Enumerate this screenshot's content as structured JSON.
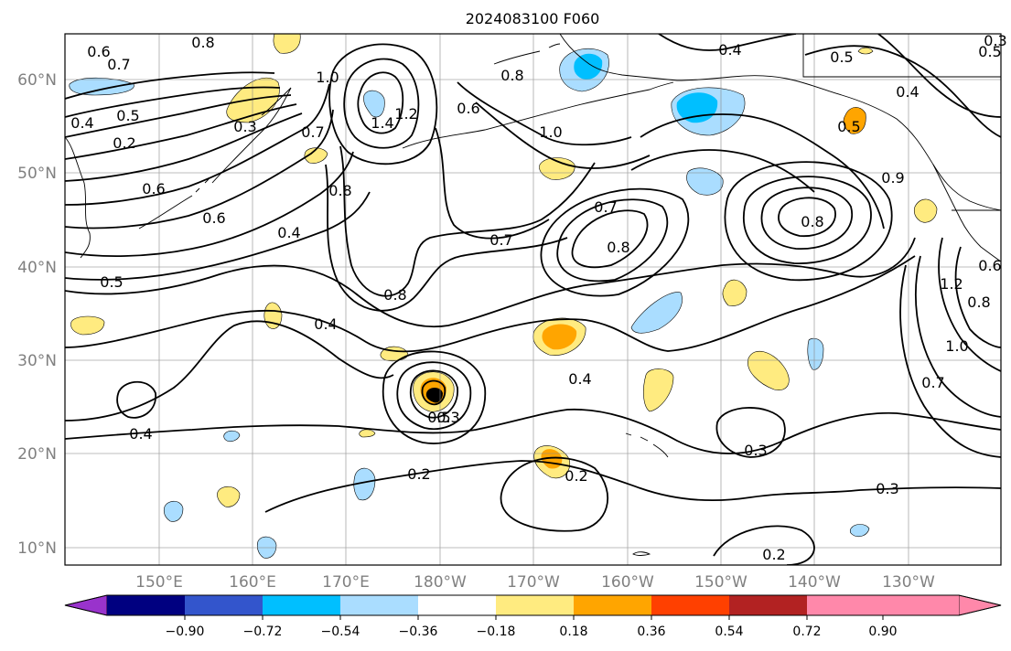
{
  "title": "2024083100 F060",
  "map": {
    "lat_labels": [
      "60°N",
      "50°N",
      "40°N",
      "30°N",
      "20°N",
      "10°N"
    ],
    "lon_labels": [
      "150°E",
      "160°E",
      "170°E",
      "180°W",
      "170°W",
      "160°W",
      "150°W",
      "140°W",
      "130°W"
    ],
    "contour_labels": [
      "0.8",
      "0.7",
      "0.6",
      "0.5",
      "0.4",
      "0.3",
      "0.2",
      "1.0",
      "1.4",
      "1.2",
      "0.6",
      "0.8",
      "1.0",
      "0.8",
      "0.7",
      "0.6",
      "0.6",
      "0.4",
      "0.5",
      "0.8",
      "0.7",
      "0.8",
      "0.7",
      "0.4",
      "0.5",
      "0.4",
      "0.4",
      "0.8",
      "0.4",
      "0.5",
      "0.5",
      "0.4",
      "0.3",
      "0.2",
      "0.3",
      "0.2",
      "0.2",
      "0.3",
      "0.7",
      "1.0",
      "1.2",
      "0.8",
      "0.6",
      "0.9",
      "0.5",
      "0.3"
    ]
  },
  "colorbar": {
    "ticks": [
      "−0.90",
      "−0.72",
      "−0.54",
      "−0.36",
      "−0.18",
      "0.18",
      "0.36",
      "0.54",
      "0.72",
      "0.90"
    ],
    "colors": [
      "#9933cc",
      "#000080",
      "#3355cc",
      "#00bfff",
      "#aaddff",
      "#ffffff",
      "#ffeb80",
      "#ffa500",
      "#ff4000",
      "#b22222",
      "#ff88aa"
    ]
  }
}
